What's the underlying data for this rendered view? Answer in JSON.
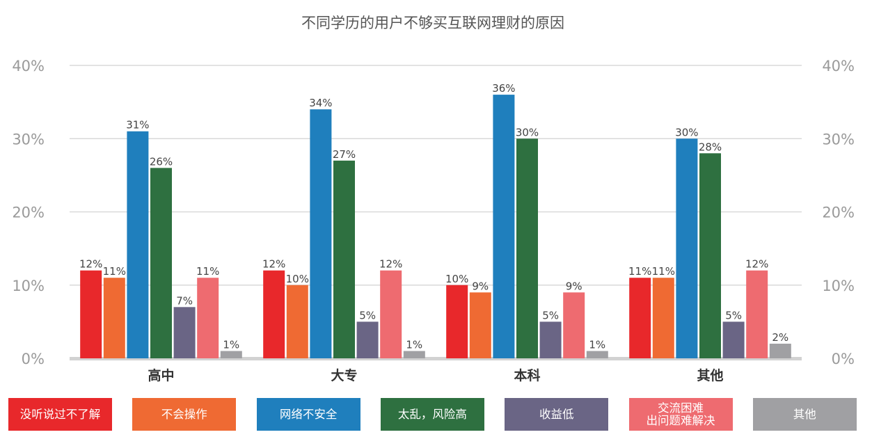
{
  "chart_data": {
    "type": "bar",
    "title": "不同学历的用户不够买互联网理财的原因",
    "categories": [
      "高中",
      "大专",
      "本科",
      "其他"
    ],
    "series": [
      {
        "name": "没听说过不了解",
        "color": "#e8282b",
        "values": [
          12,
          12,
          10,
          11
        ],
        "labels": [
          "12%",
          "12%",
          "10%",
          "11%"
        ]
      },
      {
        "name": "不会操作",
        "color": "#ef6a33",
        "values": [
          11,
          10,
          9,
          11
        ],
        "labels": [
          "11%",
          "10%",
          "9%",
          "11%"
        ]
      },
      {
        "name": "网络不安全",
        "color": "#1f7fbd",
        "values": [
          31,
          34,
          36,
          30
        ],
        "labels": [
          "31%",
          "34%",
          "36%",
          "30%"
        ]
      },
      {
        "name": "太乱，风险高",
        "color": "#2e7040",
        "values": [
          26,
          27,
          30,
          28
        ],
        "labels": [
          "26%",
          "27%",
          "30%",
          "28%"
        ]
      },
      {
        "name": "收益低",
        "color": "#6a6585",
        "values": [
          7,
          5,
          5,
          5
        ],
        "labels": [
          "7%",
          "5%",
          "5%",
          "5%"
        ]
      },
      {
        "name": "交流困难\n出问题难解决",
        "color": "#ee6b70",
        "values": [
          11,
          12,
          9,
          12
        ],
        "labels": [
          "11%",
          "12%",
          "9%",
          "12%"
        ]
      },
      {
        "name": "其他",
        "color": "#a0a0a3",
        "values": [
          1,
          1,
          1,
          2
        ],
        "labels": [
          "1%",
          "1%",
          "1%",
          "2%"
        ]
      }
    ],
    "ylim": [
      0,
      40
    ],
    "yticks": [
      "0%",
      "10%",
      "20%",
      "30%",
      "40%"
    ],
    "grid": true,
    "legend_position": "bottom"
  }
}
